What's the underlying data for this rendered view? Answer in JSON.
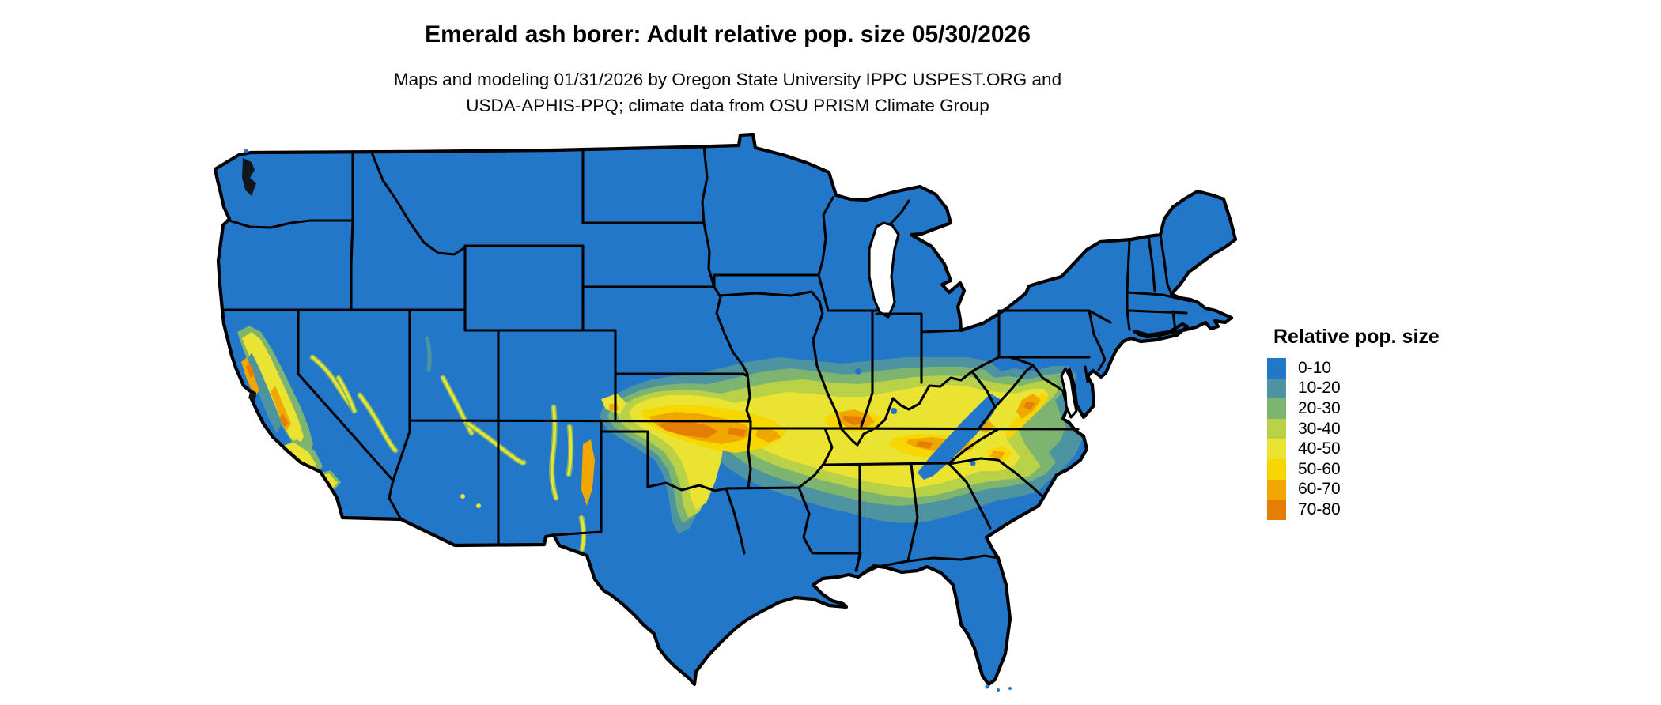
{
  "title": "Emerald ash borer: Adult relative pop. size 05/30/2026",
  "subtitle": {
    "line1": "Maps and modeling 01/31/2026 by Oregon State University IPPC USPEST.ORG and",
    "line2": "USDA-APHIS-PPQ; climate data from OSU PRISM Climate Group"
  },
  "legend": {
    "title": "Relative pop. size",
    "items": [
      {
        "label": "0-10",
        "color": "#2277C8"
      },
      {
        "label": "10-20",
        "color": "#4E93A0"
      },
      {
        "label": "20-30",
        "color": "#7CB470"
      },
      {
        "label": "30-40",
        "color": "#B9D147"
      },
      {
        "label": "40-50",
        "color": "#EAE332"
      },
      {
        "label": "50-60",
        "color": "#F8D600"
      },
      {
        "label": "60-70",
        "color": "#F0A800"
      },
      {
        "label": "70-80",
        "color": "#E67D05"
      }
    ]
  },
  "map": {
    "region": "Conterminous United States",
    "border_color": "#000000",
    "water_color": "#FFFFFF"
  }
}
